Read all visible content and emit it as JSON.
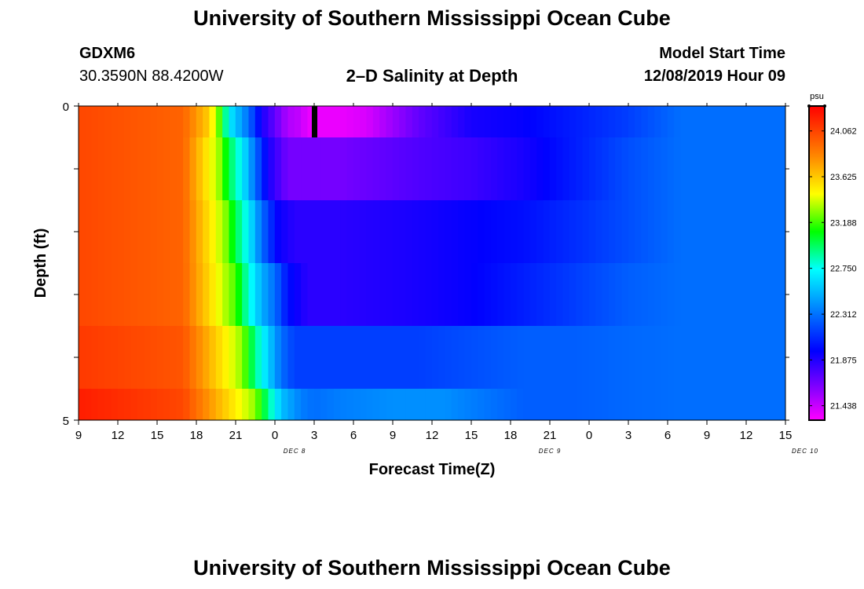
{
  "header": {
    "title": "University of Southern Mississippi Ocean Cube",
    "station": "GDXM6",
    "coords": "30.3590N 88.4200W",
    "subtitle": "2–D Salinity at Depth",
    "model_start_label": "Model Start Time",
    "model_start_value": "12/08/2019 Hour 09"
  },
  "footer": {
    "title": "University of Southern Mississippi Ocean Cube"
  },
  "chart_data": {
    "type": "heatmap",
    "title": "2–D Salinity at Depth",
    "xlabel": "Forecast Time(Z)",
    "ylabel": "Depth (ft)",
    "ylim": [
      0,
      5
    ],
    "y_ticks": [
      "0",
      "5"
    ],
    "x_ticks": [
      "9",
      "12",
      "15",
      "18",
      "21",
      "0",
      "3",
      "6",
      "9",
      "12",
      "15",
      "18",
      "21",
      "0",
      "3",
      "6",
      "9",
      "12",
      "15"
    ],
    "date_labels": [
      {
        "text": "DEC 8",
        "hour": 16.5
      },
      {
        "text": "DEC 9",
        "hour": 36
      },
      {
        "text": "DEC 10",
        "hour": 55.5
      }
    ],
    "x_range_hours": [
      0,
      54
    ],
    "depth_bins": [
      0,
      1,
      2,
      3,
      4,
      5
    ],
    "marker_hour": 18,
    "colorbar": {
      "unit": "psu",
      "min": 21.3,
      "max": 24.3,
      "tick_values": [
        24.062,
        23.625,
        23.188,
        22.75,
        22.312,
        21.875,
        21.438
      ],
      "tick_labels": [
        "24.062",
        "23.625",
        "23.188",
        "22.750",
        "22.312",
        "21.875",
        "21.438"
      ],
      "stops": [
        {
          "pos": 0.0,
          "color": "#ff00ff"
        },
        {
          "pos": 0.1,
          "color": "#8800ff"
        },
        {
          "pos": 0.22,
          "color": "#0000ff"
        },
        {
          "pos": 0.36,
          "color": "#0088ff"
        },
        {
          "pos": 0.48,
          "color": "#00ffff"
        },
        {
          "pos": 0.6,
          "color": "#00ff00"
        },
        {
          "pos": 0.72,
          "color": "#ffff00"
        },
        {
          "pos": 0.84,
          "color": "#ff8800"
        },
        {
          "pos": 1.0,
          "color": "#ff0000"
        }
      ]
    },
    "layers": [
      {
        "depth_from": 0,
        "depth_to": 0.5,
        "hours": [
          0,
          8,
          10,
          10.8,
          11.5,
          13,
          14,
          15,
          16,
          17,
          17.5,
          18.5,
          20,
          22,
          24,
          26,
          28,
          30,
          34,
          38,
          42,
          46,
          54
        ],
        "values": [
          24.05,
          23.95,
          23.6,
          23.2,
          22.7,
          22.3,
          21.9,
          21.7,
          21.5,
          21.45,
          21.35,
          21.35,
          21.35,
          21.4,
          21.55,
          21.7,
          21.8,
          21.9,
          21.95,
          22.05,
          22.15,
          22.3,
          22.3
        ]
      },
      {
        "depth_from": 0.5,
        "depth_to": 1.5,
        "hours": [
          0,
          8,
          10.8,
          11.5,
          12.5,
          13.5,
          14.5,
          16,
          20,
          26,
          30,
          34,
          38,
          42,
          46,
          54
        ],
        "values": [
          24.05,
          23.95,
          23.3,
          23.0,
          22.7,
          22.3,
          21.9,
          21.65,
          21.65,
          21.75,
          21.8,
          21.9,
          22.05,
          22.2,
          22.3,
          22.3
        ]
      },
      {
        "depth_from": 1.5,
        "depth_to": 2.5,
        "hours": [
          0,
          8,
          11.2,
          12,
          13,
          14,
          15.2,
          16.5,
          20,
          26,
          30,
          34,
          38,
          42,
          46,
          54
        ],
        "values": [
          24.05,
          23.95,
          23.3,
          23.0,
          22.7,
          22.3,
          21.95,
          21.85,
          21.85,
          21.9,
          21.95,
          22.0,
          22.1,
          22.2,
          22.3,
          22.3
        ]
      },
      {
        "depth_from": 2.5,
        "depth_to": 3.5,
        "hours": [
          0,
          8,
          12,
          13,
          14,
          15,
          16,
          17.5,
          20,
          26,
          30,
          34,
          38,
          42,
          46,
          54
        ],
        "values": [
          24.05,
          23.95,
          23.2,
          22.8,
          22.5,
          22.3,
          22.0,
          21.85,
          21.85,
          21.9,
          21.95,
          22.05,
          22.15,
          22.25,
          22.3,
          22.3
        ]
      },
      {
        "depth_from": 3.5,
        "depth_to": 4.5,
        "hours": [
          0,
          8,
          12.5,
          13.5,
          14.5,
          15.5,
          16.5,
          18,
          20,
          26,
          30,
          34,
          38,
          42,
          46,
          54
        ],
        "values": [
          24.1,
          24.0,
          23.3,
          22.9,
          22.6,
          22.3,
          22.15,
          22.15,
          22.15,
          22.15,
          22.2,
          22.25,
          22.25,
          22.28,
          22.3,
          22.3
        ]
      },
      {
        "depth_from": 4.5,
        "depth_to": 5,
        "hours": [
          0,
          8,
          13.5,
          14.5,
          15.5,
          17,
          18,
          20,
          24,
          28,
          30,
          32,
          34,
          38,
          42,
          46,
          54
        ],
        "values": [
          24.2,
          24.05,
          23.3,
          22.9,
          22.55,
          22.35,
          22.3,
          22.35,
          22.4,
          22.4,
          22.35,
          22.3,
          22.25,
          22.25,
          22.28,
          22.3,
          22.3
        ]
      }
    ]
  }
}
